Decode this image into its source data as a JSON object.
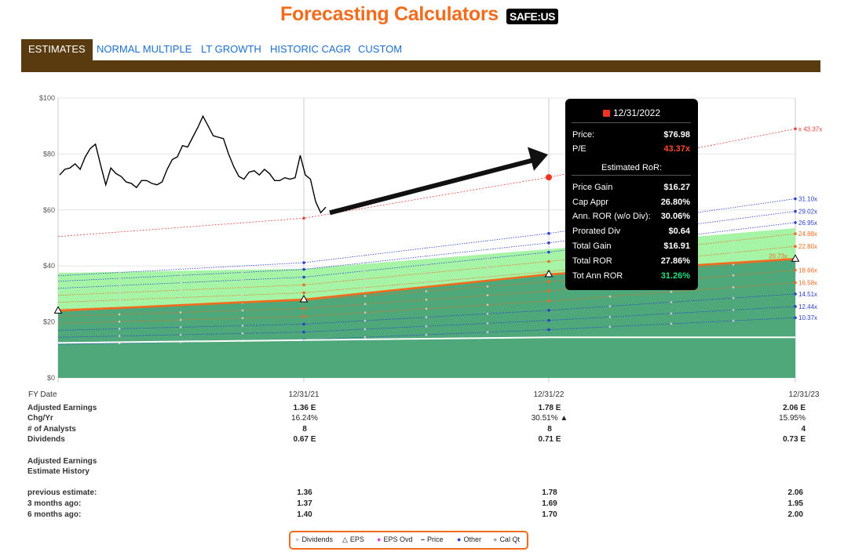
{
  "header": {
    "title": "Forecasting Calculators",
    "ticker": "SAFE:US"
  },
  "tabs": [
    {
      "label": "ESTIMATES",
      "active": true
    },
    {
      "label": "NORMAL MULTIPLE"
    },
    {
      "label": "LT GROWTH"
    },
    {
      "label": "HISTORIC CAGR"
    },
    {
      "label": "CUSTOM"
    }
  ],
  "chart_data": {
    "type": "line",
    "ylim": [
      0,
      100
    ],
    "yticks": [
      "$0",
      "$20",
      "$40",
      "$60",
      "$80",
      "$100"
    ],
    "x_label": "FY Date",
    "x_dates": [
      "12/31/21",
      "12/31/22",
      "12/31/23"
    ],
    "price_series": {
      "name": "Price",
      "values": [
        72.5,
        74.5,
        75.0,
        76.5,
        74.5,
        79.0,
        82.0,
        83.5,
        76.0,
        69.0,
        75.0,
        73.0,
        72.0,
        70.0,
        69.5,
        68.0,
        70.5,
        70.5,
        69.5,
        69.0,
        70.0,
        74.5,
        78.0,
        79.0,
        83.0,
        82.5,
        86.0,
        89.5,
        93.5,
        90.0,
        86.5,
        86.0,
        85.5,
        80.0,
        75.5,
        72.0,
        71.0,
        73.5,
        74.0,
        72.5,
        74.5,
        73.0,
        70.5,
        70.5,
        71.5,
        71.0,
        71.5,
        79.5,
        72.5,
        71.0,
        63.0,
        59.0,
        61.0
      ]
    },
    "pe_bands": [
      {
        "label": "43.37x",
        "start": 50.5,
        "end": 89.0,
        "color": "#e8403a",
        "prefix": "x "
      },
      {
        "label": "31.10x",
        "start": 36.5,
        "end": 64.0,
        "color": "#2a3fd0"
      },
      {
        "label": "29.02x",
        "start": 34.5,
        "end": 59.5,
        "color": "#2a3fd0"
      },
      {
        "label": "26.95x",
        "start": 32.0,
        "end": 55.5,
        "color": "#2a3fd0"
      },
      {
        "label": "24.88x",
        "start": 29.5,
        "end": 51.5,
        "color": "#f36b1c"
      },
      {
        "label": "22.80x",
        "start": 27.0,
        "end": 47.0,
        "color": "#f36b1c"
      },
      {
        "label": "20.73x",
        "start": 24.5,
        "end": 42.5,
        "color": "#f36b1c",
        "eps": true
      },
      {
        "label": "18.66x",
        "start": 22.0,
        "end": 38.5,
        "color": "#f36b1c"
      },
      {
        "label": "16.58x",
        "start": 19.5,
        "end": 34.0,
        "color": "#f36b1c"
      },
      {
        "label": "14.51x",
        "start": 17.0,
        "end": 30.0,
        "color": "#2a3fd0"
      },
      {
        "label": "12.44x",
        "start": 14.5,
        "end": 25.5,
        "color": "#2a3fd0"
      },
      {
        "label": "10.37x",
        "start": 12.0,
        "end": 21.5,
        "color": "#2a3fd0"
      }
    ],
    "dividend_line": {
      "start": 12.5,
      "end": 14.5
    },
    "eps_line": {
      "name": "EPS",
      "values": [
        24.0,
        28.0,
        37.0,
        42.5
      ]
    }
  },
  "tooltip": {
    "date": "12/31/2022",
    "price_label": "Price:",
    "price": "$76.98",
    "pe_label": "P/E",
    "pe": "43.37x",
    "heading": "Estimated RoR:",
    "rows": [
      {
        "k": "Price Gain",
        "v": "$16.27"
      },
      {
        "k": "Cap Appr",
        "v": "26.80%"
      },
      {
        "k": "Ann. ROR (w/o Div):",
        "v": "30.06%"
      },
      {
        "k": "Prorated Div",
        "v": "$0.64"
      },
      {
        "k": "Total Gain",
        "v": "$16.91"
      },
      {
        "k": "Total ROR",
        "v": "27.86%"
      },
      {
        "k": "Tot Ann ROR",
        "v": "31.26%"
      }
    ]
  },
  "table": {
    "labels": [
      "Adjusted Earnings",
      "Chg/Yr",
      "# of Analysts",
      "Dividends"
    ],
    "columns": [
      {
        "earnings": "1.36 E",
        "chg": "16.24%",
        "analysts": "8",
        "div": "0.67 E"
      },
      {
        "earnings": "1.78 E",
        "chg": "30.51%",
        "analysts": "8",
        "div": "0.71 E"
      },
      {
        "earnings": "2.06 E",
        "chg": "15.95%",
        "analysts": "4",
        "div": "0.73 E"
      }
    ],
    "history_title_1": "Adjusted Earnings",
    "history_title_2": "Estimate History",
    "history_labels": [
      "previous estimate:",
      "3 months ago:",
      "6 months ago:"
    ],
    "history": [
      [
        "1.36",
        "1.78",
        "2.06"
      ],
      [
        "1.37",
        "1.69",
        "1.95"
      ],
      [
        "1.40",
        "1.70",
        "2.00"
      ]
    ]
  },
  "legend": {
    "items": [
      {
        "label": "Dividends",
        "color": "#dddddd"
      },
      {
        "label": "EPS",
        "color": "#000000"
      },
      {
        "label": "EPS Ovd",
        "color": "#e040e0"
      },
      {
        "label": "Price",
        "color": "#000000"
      },
      {
        "label": "Other",
        "color": "#2a3fd0"
      },
      {
        "label": "Cal Qt",
        "color": "#aaaaaa"
      }
    ]
  }
}
